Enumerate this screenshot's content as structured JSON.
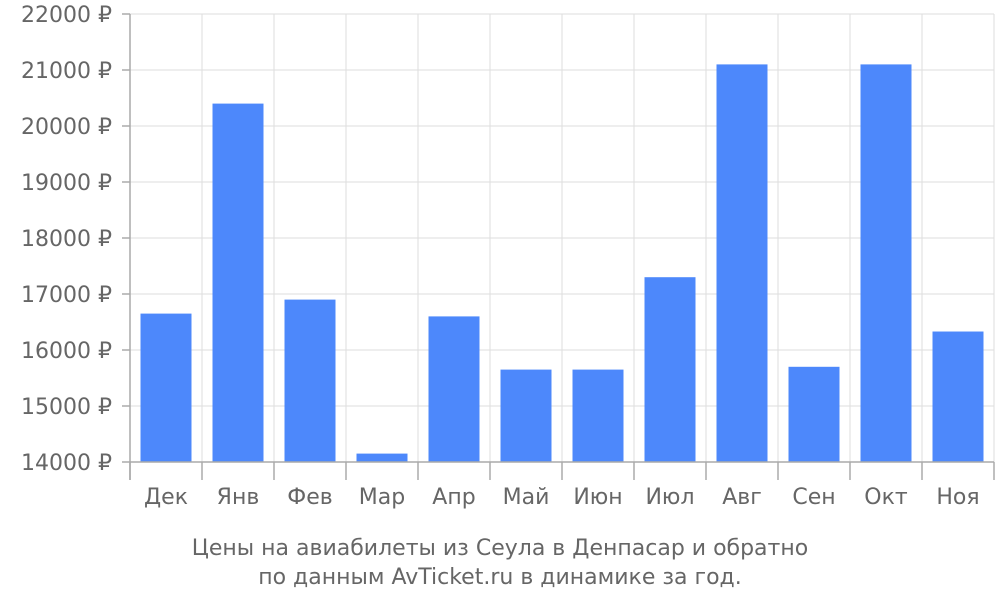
{
  "chart_data": {
    "type": "bar",
    "categories": [
      "Дек",
      "Янв",
      "Фев",
      "Мар",
      "Апр",
      "Май",
      "Июн",
      "Июл",
      "Авг",
      "Сен",
      "Окт",
      "Ноя"
    ],
    "values": [
      16650,
      20400,
      16900,
      14150,
      16600,
      15650,
      15650,
      17300,
      21100,
      15700,
      21100,
      16330
    ],
    "ylim": [
      14000,
      22000
    ],
    "yticks": [
      "14000 ₽",
      "15000 ₽",
      "16000 ₽",
      "17000 ₽",
      "18000 ₽",
      "19000 ₽",
      "20000 ₽",
      "21000 ₽",
      "22000 ₽"
    ],
    "grid": true,
    "bar_color": "#4d88fb",
    "caption_line1": "Цены на авиабилеты из Сеула в Денпасар и обратно",
    "caption_line2": "по данным AvTicket.ru в динамике за год."
  }
}
